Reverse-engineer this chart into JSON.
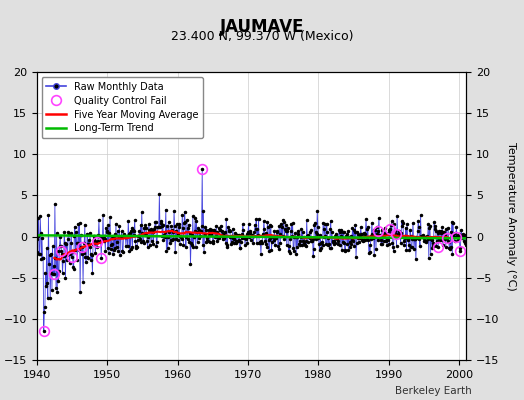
{
  "title": "JAUMAVE",
  "subtitle": "23.400 N, 99.370 W (Mexico)",
  "ylabel": "Temperature Anomaly (°C)",
  "credit": "Berkeley Earth",
  "xlim": [
    1940,
    2001
  ],
  "ylim": [
    -15,
    20
  ],
  "yticks": [
    -15,
    -10,
    -5,
    0,
    5,
    10,
    15,
    20
  ],
  "xticks": [
    1940,
    1950,
    1960,
    1970,
    1980,
    1990,
    2000
  ],
  "bg_color": "#e0e0e0",
  "plot_bg_color": "#ffffff",
  "raw_line_color": "#4444dd",
  "raw_marker_color": "#000000",
  "qc_fail_color": "#ff44ff",
  "moving_avg_color": "#ff0000",
  "trend_color": "#00bb00",
  "seed": 42
}
